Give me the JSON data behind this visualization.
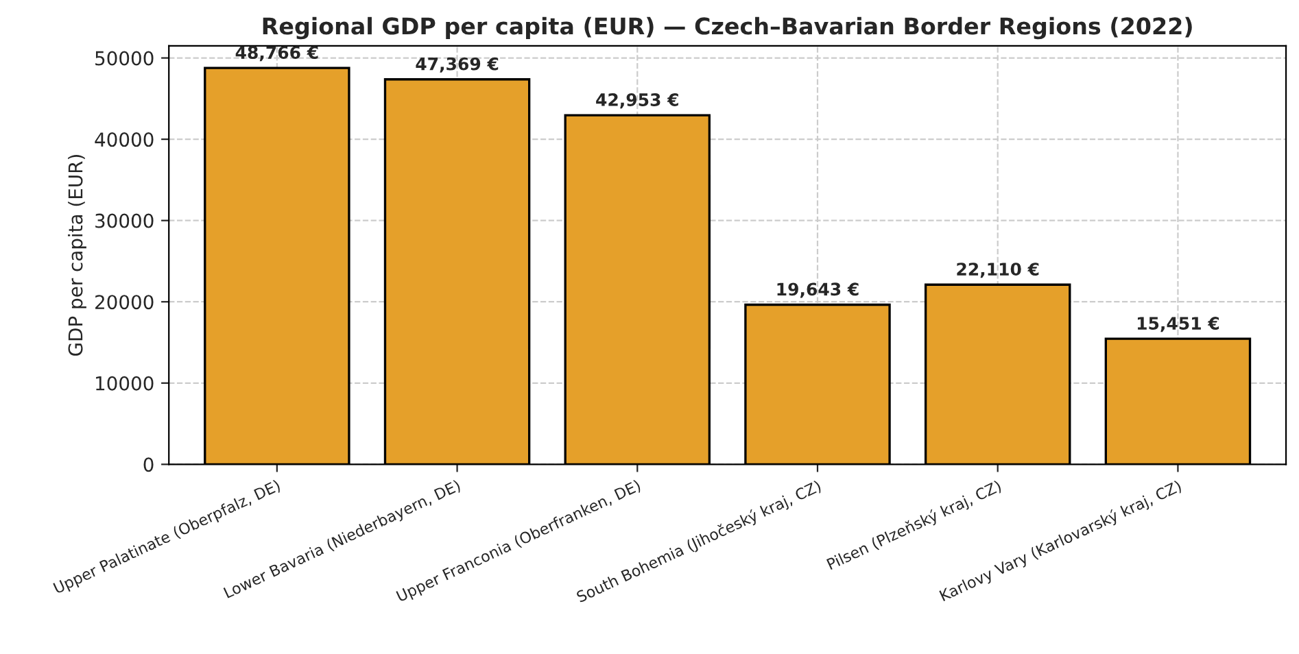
{
  "chart_data": {
    "type": "bar",
    "title": "Regional GDP per capita (EUR) — Czech–Bavarian Border Regions (2022)",
    "ylabel": "GDP per capita (EUR)",
    "categories": [
      "Upper Palatinate (Oberpfalz, DE)",
      "Lower Bavaria (Niederbayern, DE)",
      "Upper Franconia (Oberfranken, DE)",
      "South Bohemia (Jihočeský kraj, CZ)",
      "Pilsen (Plzeňský kraj, CZ)",
      "Karlovy Vary (Karlovarský kraj, CZ)"
    ],
    "values": [
      48766,
      47369,
      42953,
      19643,
      22110,
      15451
    ],
    "value_labels": [
      "48,766 €",
      "47,369 €",
      "42,953 €",
      "19,643 €",
      "22,110 €",
      "15,451 €"
    ],
    "color": "#e5a02a",
    "ylim": [
      0,
      51500
    ],
    "yticks": [
      0,
      10000,
      20000,
      30000,
      40000,
      50000
    ],
    "grid": true,
    "legend": false
  }
}
